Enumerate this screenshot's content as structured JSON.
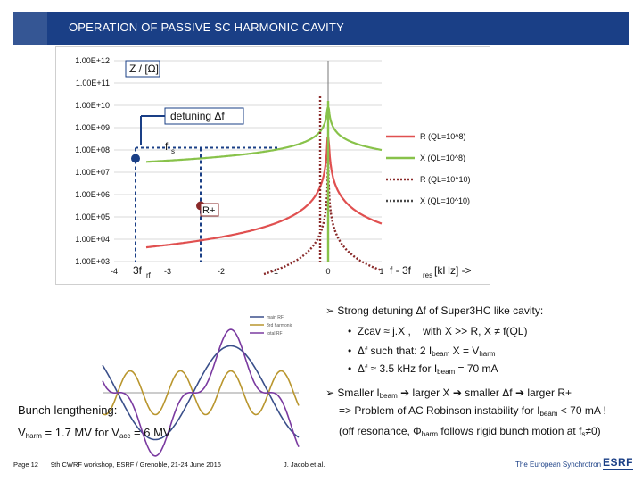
{
  "slide": {
    "title": "OPERATION OF PASSIVE SC HARMONIC CAVITY",
    "footer": {
      "page": "Page 12",
      "event": "9th CWRF workshop, ESRF / Grenoble, 21-24 June 2016",
      "author": "J. Jacob et al.",
      "org": "The European Synchrotron",
      "logo": "ESRF"
    }
  },
  "impedance_chart": {
    "type": "line",
    "y_label": "Z / [Ω]",
    "x_label_main": "f - 3f",
    "x_label_sub": "res",
    "x_label_unit": " [kHz] ->",
    "y_ticks": [
      "1.00E+12",
      "1.00E+11",
      "1.00E+10",
      "1.00E+09",
      "1.00E+08",
      "1.00E+07",
      "1.00E+06",
      "1.00E+05",
      "1.00E+04",
      "1.00E+03"
    ],
    "x_ticks": [
      "-4",
      "-3",
      "-2",
      "-1",
      "0",
      "1"
    ],
    "xlim": [
      -4,
      1
    ],
    "ylim": [
      "1.00E+03",
      "1.00E+12"
    ],
    "legend": [
      "R (QL=10^8)",
      "X (QL=10^8)",
      "R (QL=10^10)",
      "X (QL=10^10)"
    ],
    "legend_colors": [
      "#e05050",
      "#88c24a",
      "#8a2a2a",
      "#4a4a4a"
    ],
    "annotations": {
      "detuning": "detuning Δf",
      "fs_main": "f",
      "fs_sub": "s",
      "r_plus": "R+",
      "three_frf_main": "3f",
      "three_frf_sub": "rf"
    }
  },
  "waveform_chart": {
    "type": "line",
    "legend": [
      "main RF",
      "3rd harmonic",
      "total RF"
    ]
  },
  "bullets": {
    "b1": "Strong detuning Δf of Super3HC like cavity:",
    "s1a": "Zcav ≈ j.X ,",
    "s1b": "with X >> R,  X ≠ f(QL)",
    "s2_pre": "Δf such that: 2 I",
    "s2_sub1": "beam",
    "s2_mid": " X  = V",
    "s2_sub2": "harm",
    "s3_pre": "Δf ≈ 3.5 kHz for I",
    "s3_sub": "beam",
    "s3_post": " = 70 mA",
    "b2_pre": "Smaller I",
    "b2_sub": "beam",
    "b2_mid": " larger X ",
    "b2_mid2": " smaller Δf ",
    "b2_post": " larger R+",
    "b2_line2_pre": "=> Problem of AC Robinson instability for I",
    "b2_line2_sub": "beam",
    "b2_line2_post": " < 70 mA !",
    "b2_line3_pre": "(off resonance, Φ",
    "b2_line3_sub": "harm",
    "b2_line3_mid": " follows rigid bunch motion at f",
    "b2_line3_sub2": "s",
    "b2_line3_post": "≠0)"
  },
  "left_text": {
    "bunch": "Bunch lengthening:",
    "v_pre": "V",
    "v_sub1": "harm",
    "v_mid": " = 1.7 MV for V",
    "v_sub2": "acc",
    "v_post": " = 6 MV"
  }
}
